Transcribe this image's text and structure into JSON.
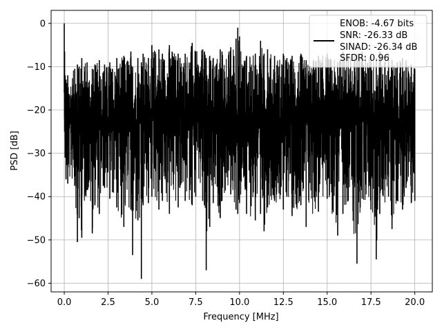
{
  "chart_data": {
    "type": "line",
    "xlabel": "Frequency [MHz]",
    "ylabel": "PSD [dB]",
    "xlim": [
      -0.75,
      21.0
    ],
    "ylim": [
      -62.0,
      3.0
    ],
    "xticks": [
      0.0,
      2.5,
      5.0,
      7.5,
      10.0,
      12.5,
      15.0,
      17.5,
      20.0
    ],
    "xtick_labels": [
      "0.0",
      "2.5",
      "5.0",
      "7.5",
      "10.0",
      "12.5",
      "15.0",
      "17.5",
      "20.0"
    ],
    "yticks": [
      0,
      -10,
      -20,
      -30,
      -40,
      -50,
      -60
    ],
    "ytick_labels": [
      "0",
      "−10",
      "−20",
      "−30",
      "−40",
      "−50",
      "−60"
    ],
    "grid": true,
    "legend_position": "top-right",
    "legend_lines": [
      "ENOB: -4.67 bits",
      "SNR: -26.33 dB",
      "SINAD: -26.34 dB",
      "SFDR: 0.96"
    ],
    "line_color": "#000000",
    "series": [
      {
        "x": [
          0.0,
          0.02,
          0.05,
          0.1,
          0.2,
          0.6,
          0.75,
          0.85,
          1.0,
          1.3,
          1.6,
          1.75,
          2.0,
          2.3,
          2.6,
          2.75,
          3.0,
          3.4,
          3.8,
          3.9,
          4.2,
          4.4,
          4.5,
          4.8,
          5.0,
          5.4,
          5.6,
          6.0,
          6.5,
          6.6,
          6.9,
          7.3,
          7.5,
          7.9,
          8.0,
          8.1,
          8.3,
          8.5,
          8.9,
          9.0,
          9.5,
          9.8,
          9.9,
          10.0,
          10.4,
          10.9,
          11.2,
          11.4,
          11.6,
          12.0,
          12.5,
          12.7,
          13.0,
          13.5,
          13.8,
          14.5,
          15.0,
          15.6,
          15.9,
          16.2,
          16.7,
          17.0,
          17.5,
          17.8,
          18.0,
          18.5,
          18.7,
          19.0,
          19.3,
          19.5,
          19.8,
          20.0
        ],
        "y_upper": [
          0.0,
          -6.5,
          -12.0,
          -13.0,
          -12.0,
          -10.5,
          -9.5,
          -10.0,
          -8.0,
          -9.0,
          -10.5,
          -9.5,
          -8.5,
          -9.5,
          -9.0,
          -10.5,
          -8.0,
          -7.5,
          -6.5,
          -10.0,
          -8.0,
          -9.0,
          -7.0,
          -8.0,
          -5.0,
          -6.0,
          -7.0,
          -5.0,
          -7.0,
          -8.0,
          -7.0,
          -4.5,
          -6.5,
          -6.0,
          -6.5,
          -8.0,
          -7.5,
          -8.0,
          -6.0,
          -6.5,
          -5.5,
          -3.5,
          -1.0,
          -3.0,
          -7.5,
          -7.0,
          -4.0,
          -7.0,
          -6.0,
          -7.5,
          -7.0,
          -8.0,
          -7.5,
          -7.0,
          -8.5,
          -7.5,
          -7.0,
          -9.0,
          -6.5,
          -7.5,
          -7.0,
          -6.5,
          -7.5,
          -8.0,
          -6.5,
          -7.0,
          -8.5,
          -9.0,
          -8.0,
          -8.5,
          -9.5,
          -10.5
        ],
        "y_lower": [
          -16.0,
          -25.0,
          -31.0,
          -36.0,
          -37.0,
          -37.5,
          -50.5,
          -45.0,
          -49.5,
          -38.5,
          -48.5,
          -42.0,
          -44.0,
          -38.0,
          -40.5,
          -39.0,
          -42.5,
          -47.0,
          -43.0,
          -53.5,
          -45.5,
          -59.0,
          -42.0,
          -41.5,
          -40.0,
          -43.0,
          -41.0,
          -44.0,
          -42.5,
          -38.0,
          -41.0,
          -42.0,
          -40.0,
          -41.0,
          -42.0,
          -57.0,
          -47.0,
          -41.5,
          -45.0,
          -41.0,
          -39.5,
          -43.0,
          -44.0,
          -41.5,
          -44.0,
          -45.5,
          -44.0,
          -48.0,
          -42.5,
          -41.0,
          -43.0,
          -40.0,
          -44.5,
          -42.0,
          -47.0,
          -43.5,
          -40.5,
          -49.0,
          -44.0,
          -41.0,
          -55.5,
          -40.5,
          -43.0,
          -54.5,
          -44.0,
          -40.0,
          -47.5,
          -41.0,
          -43.0,
          -38.0,
          -41.5,
          -41.0
        ]
      }
    ]
  }
}
